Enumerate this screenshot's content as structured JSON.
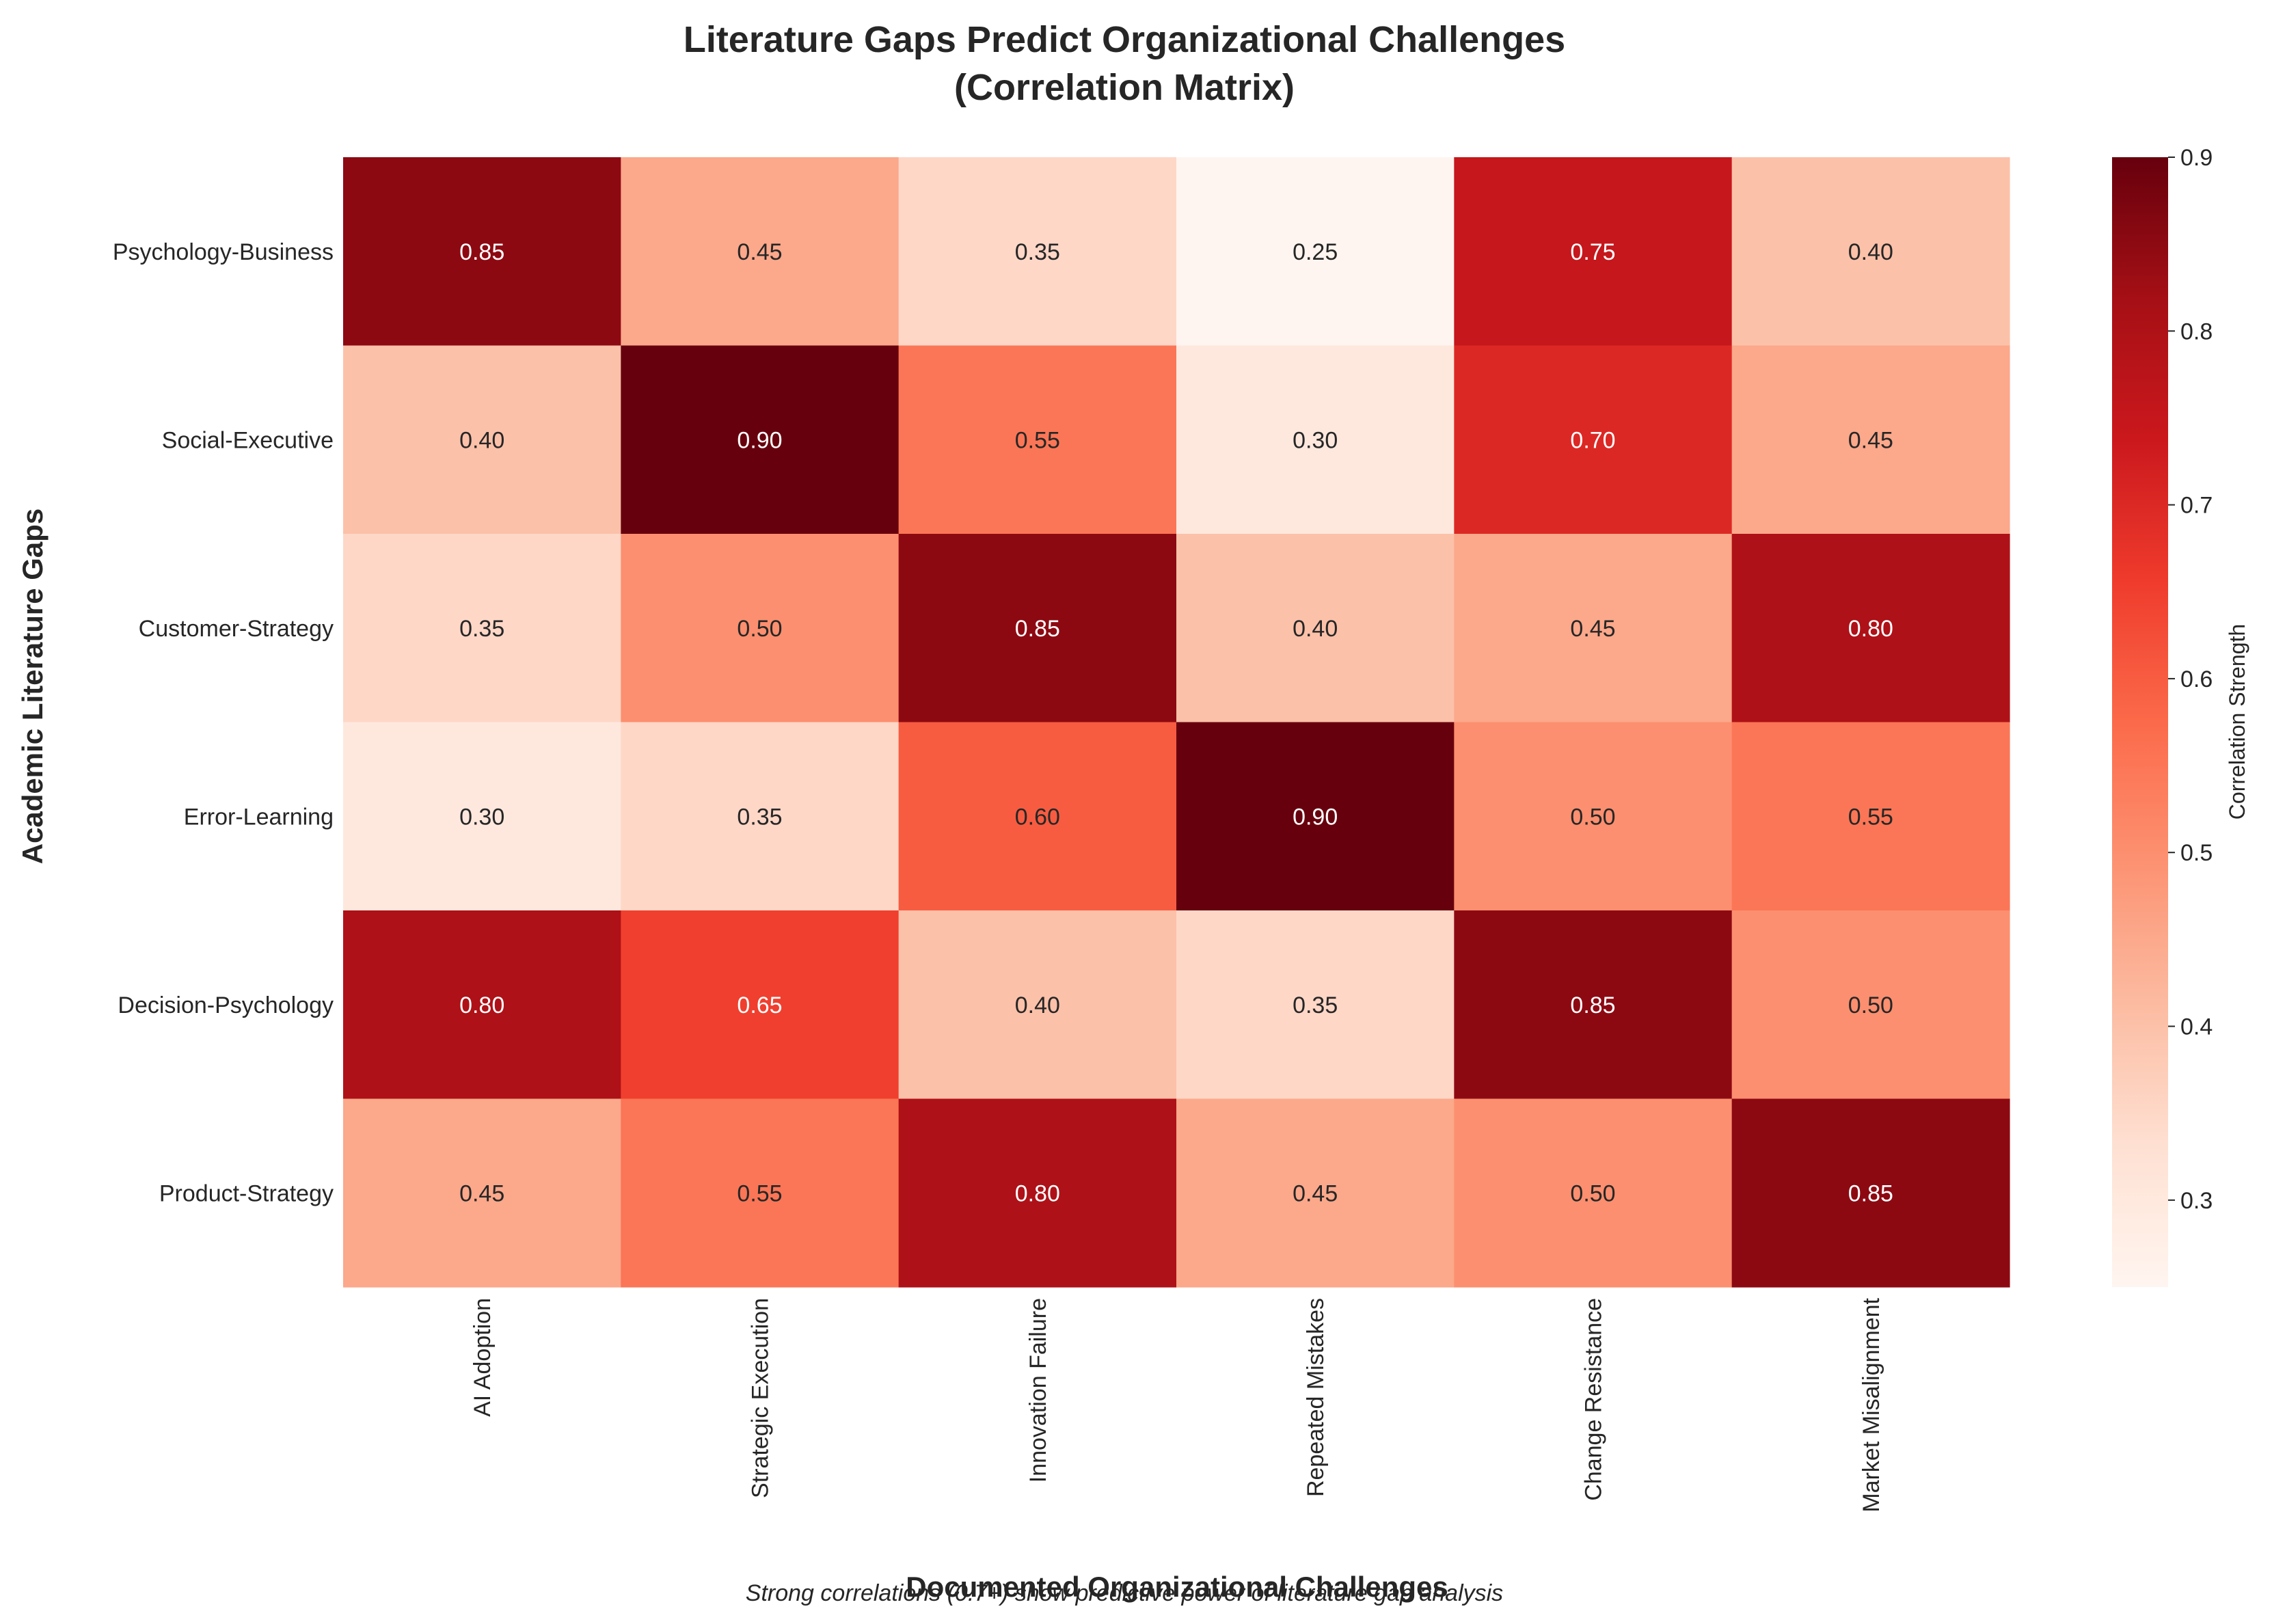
{
  "chart_data": {
    "type": "heatmap",
    "title_line1": "Literature Gaps Predict Organizational Challenges",
    "title_line2": "(Correlation Matrix)",
    "xlabel": "Documented Organizational Challenges",
    "ylabel": "Academic Literature Gaps",
    "x_categories": [
      "AI Adoption",
      "Strategic Execution",
      "Innovation Failure",
      "Repeated Mistakes",
      "Change Resistance",
      "Market Misalignment"
    ],
    "y_categories": [
      "Psychology-Business",
      "Social-Executive",
      "Customer-Strategy",
      "Error-Learning",
      "Decision-Psychology",
      "Product-Strategy"
    ],
    "values": [
      [
        0.85,
        0.45,
        0.35,
        0.25,
        0.75,
        0.4
      ],
      [
        0.4,
        0.9,
        0.55,
        0.3,
        0.7,
        0.45
      ],
      [
        0.35,
        0.5,
        0.85,
        0.4,
        0.45,
        0.8
      ],
      [
        0.3,
        0.35,
        0.6,
        0.9,
        0.5,
        0.55
      ],
      [
        0.8,
        0.65,
        0.4,
        0.35,
        0.85,
        0.5
      ],
      [
        0.45,
        0.55,
        0.8,
        0.45,
        0.5,
        0.85
      ]
    ],
    "colormap": "Reds",
    "vmin": 0.25,
    "vmax": 0.9,
    "colorbar": {
      "label": "Correlation Strength",
      "ticks": [
        0.3,
        0.4,
        0.5,
        0.6,
        0.7,
        0.8,
        0.9
      ],
      "tick_labels": [
        "0.3",
        "0.4",
        "0.5",
        "0.6",
        "0.7",
        "0.8",
        "0.9"
      ]
    },
    "value_format": "0.00",
    "grid": false
  },
  "footnote": "Strong correlations (0.7+) show predictive power of literature gap analysis"
}
